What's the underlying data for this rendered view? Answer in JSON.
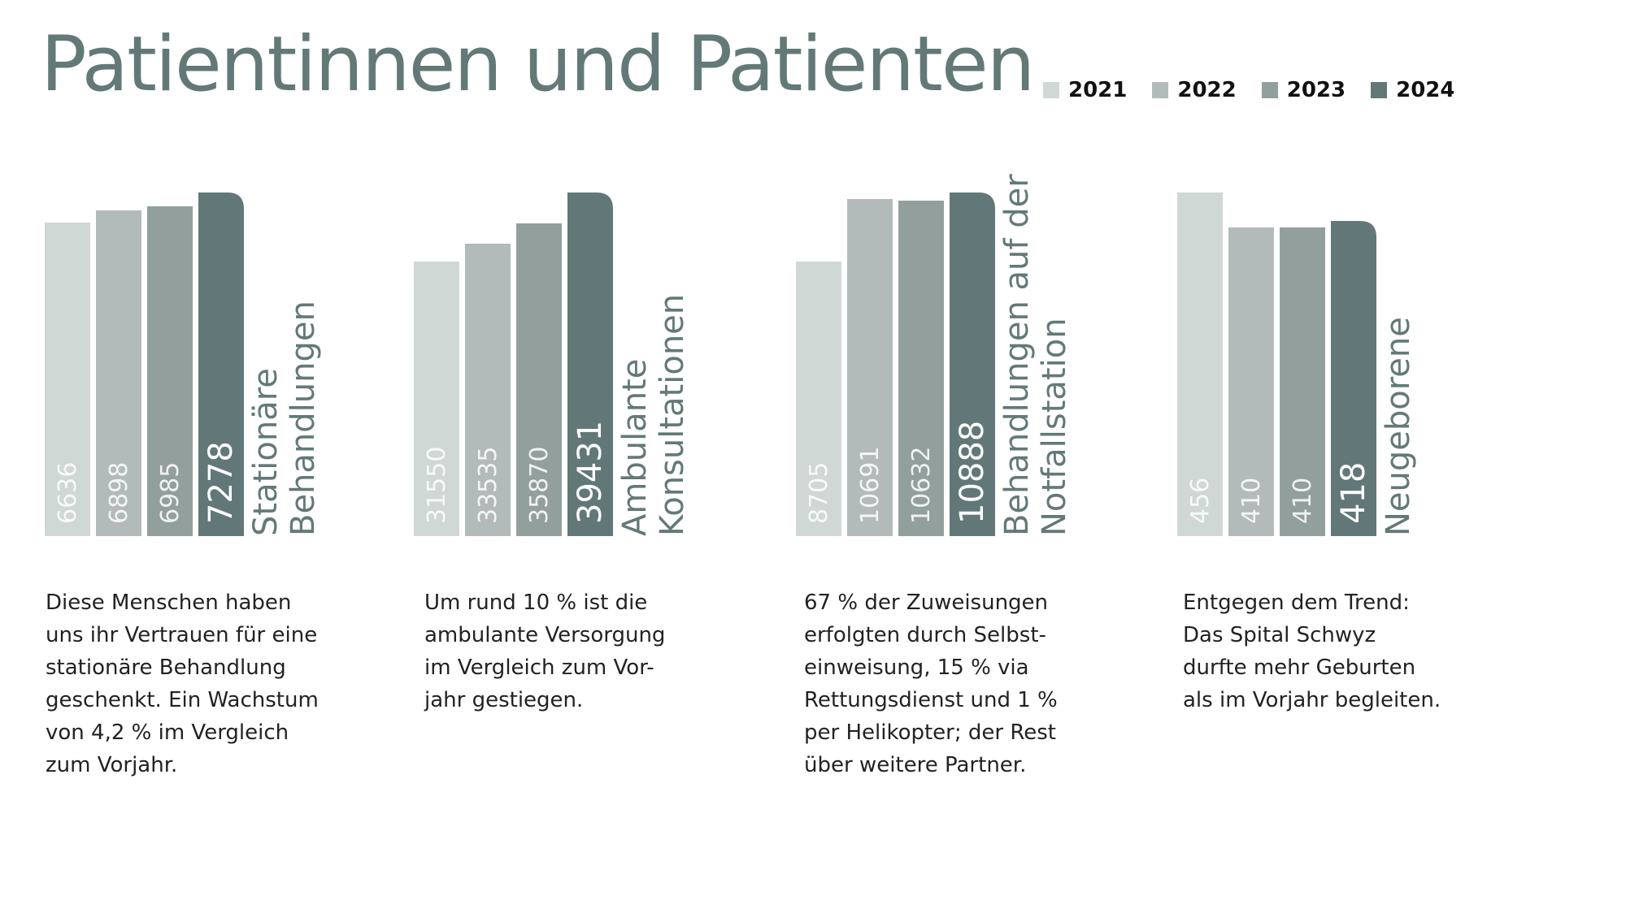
{
  "title": "Patientinnen und Patienten",
  "legend": [
    {
      "year": "2021",
      "color": "#d0d8d6"
    },
    {
      "year": "2022",
      "color": "#b2bbb9"
    },
    {
      "year": "2023",
      "color": "#939f9d"
    },
    {
      "year": "2024",
      "color": "#627878"
    }
  ],
  "chart_data": [
    {
      "type": "bar",
      "title_lines": [
        "Stationäre",
        "Behandlungen"
      ],
      "categories": [
        "2021",
        "2022",
        "2023",
        "2024"
      ],
      "values": [
        6636,
        6898,
        6985,
        7278
      ],
      "labels": [
        "6636",
        "6898",
        "6985",
        "7278"
      ],
      "ylim": [
        0,
        7278
      ],
      "xlabel": "",
      "ylabel": ""
    },
    {
      "type": "bar",
      "title_lines": [
        "Ambulante",
        "Konsultationen"
      ],
      "categories": [
        "2021",
        "2022",
        "2023",
        "2024"
      ],
      "values": [
        31550,
        33535,
        35870,
        39431
      ],
      "labels": [
        "31550",
        "33535",
        "35870",
        "39431"
      ],
      "ylim": [
        0,
        39431
      ],
      "xlabel": "",
      "ylabel": ""
    },
    {
      "type": "bar",
      "title_lines": [
        "Behandlungen auf der",
        "Notfallstation"
      ],
      "categories": [
        "2021",
        "2022",
        "2023",
        "2024"
      ],
      "values": [
        8705,
        10691,
        10632,
        10888
      ],
      "labels": [
        "8705",
        "10691",
        "10632",
        "10888"
      ],
      "ylim": [
        0,
        10888
      ],
      "xlabel": "",
      "ylabel": ""
    },
    {
      "type": "bar",
      "title_lines": [
        "Neugeborene"
      ],
      "categories": [
        "2021",
        "2022",
        "2023",
        "2024"
      ],
      "values": [
        456,
        410,
        410,
        418
      ],
      "labels": [
        "456",
        "410",
        "410",
        "418"
      ],
      "ylim": [
        0,
        456
      ],
      "xlabel": "",
      "ylabel": ""
    }
  ],
  "descriptions": [
    [
      "Diese Menschen haben",
      "uns ihr Vertrauen für eine",
      "stationäre Behandlung",
      "geschenkt. Ein Wachstum",
      "von 4,2 % im Vergleich",
      "zum Vorjahr."
    ],
    [
      "Um rund 10 % ist die",
      "ambulante Versorgung",
      "im Vergleich zum Vor-",
      "jahr gestiegen."
    ],
    [
      "67 % der Zuweisungen",
      "erfolgten durch Selbst-",
      "einweisung, 15 % via",
      "Rettungsdienst und 1 %",
      "per Helikopter; der Rest",
      "über weitere Partner."
    ],
    [
      "Entgegen dem Trend:",
      "Das Spital Schwyz",
      "durfte mehr Geburten",
      "als im Vorjahr begleiten."
    ]
  ]
}
